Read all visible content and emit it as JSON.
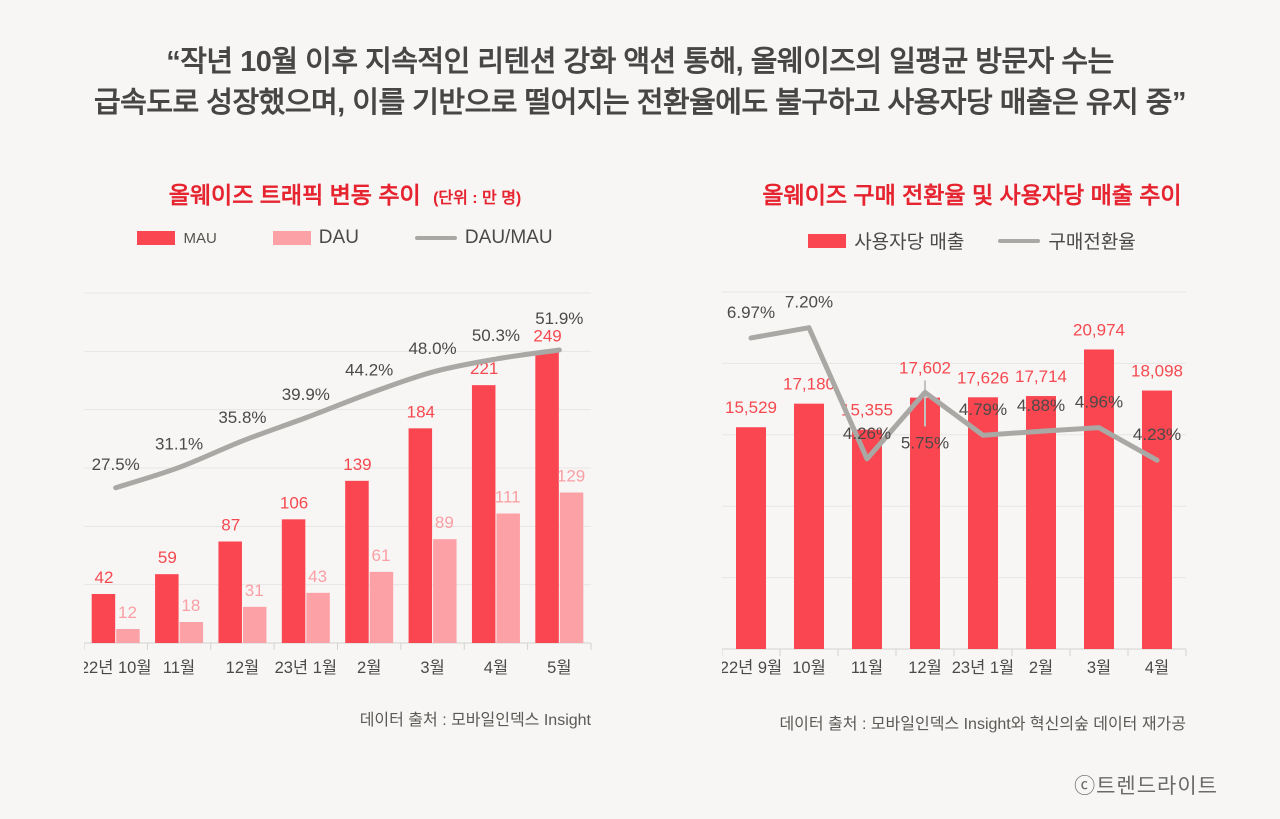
{
  "headline": {
    "line1": "“작년 10월 이후 지속적인 리텐션 강화 액션 통해, 올웨이즈의 일평균 방문자 수는",
    "line2": "급속도로 성장했으며, 이를 기반으로 떨어지는 전환율에도 불구하고 사용자당 매출은 유지 중”"
  },
  "watermark": "ⓒ트렌드라이트",
  "colors": {
    "background": "#F7F6F5",
    "bar_red": "#FA4650",
    "bar_pink": "#FCA2A7",
    "line_gray": "#A9A8A5",
    "title_red": "#E62430",
    "label_dark": "#4B4A48",
    "gridline": "#E7E6E4",
    "axis": "#D3D2D0"
  },
  "chart_data": [
    {
      "type": "bar",
      "title": "올웨이즈 트래픽 변동 추이",
      "unit_note": "(단위 : 만 명)",
      "categories": [
        "22년 10월",
        "11월",
        "12월",
        "23년 1월",
        "2월",
        "3월",
        "4월",
        "5월"
      ],
      "series": [
        {
          "name": "MAU",
          "kind": "bar",
          "color": "#FA4650",
          "label_color": "#F5494F",
          "values": [
            42,
            59,
            87,
            106,
            139,
            184,
            221,
            249
          ]
        },
        {
          "name": "DAU",
          "kind": "bar",
          "color": "#FCA2A7",
          "label_color": "#FA9FA4",
          "values": [
            12,
            18,
            31,
            43,
            61,
            89,
            111,
            129
          ]
        },
        {
          "name": "DAU/MAU",
          "kind": "line",
          "color": "#A9A8A5",
          "smooth": true,
          "values": [
            27.5,
            31.1,
            35.8,
            39.9,
            44.2,
            48.0,
            50.3,
            51.9
          ],
          "labels": [
            "27.5%",
            "31.1%",
            "35.8%",
            "39.9%",
            "44.2%",
            "48.0%",
            "50.3%",
            "51.9%"
          ]
        }
      ],
      "bar_axis": {
        "min": 0,
        "max": 300,
        "grid_step": 50
      },
      "line_axis": {
        "min": 0,
        "max": 62
      },
      "legend_position": "top",
      "grid": true,
      "source": "데이터 출처 : 모바일인덱스 Insight"
    },
    {
      "type": "bar",
      "title": "올웨이즈 구매 전환율 및 사용자당 매출 추이",
      "unit_note": "",
      "categories": [
        "22년 9월",
        "10월",
        "11월",
        "12월",
        "23년 1월",
        "2월",
        "3월",
        "4월"
      ],
      "series": [
        {
          "name": "사용자당 매출",
          "kind": "bar",
          "color": "#FA4650",
          "label_color": "#F5494F",
          "values": [
            15529,
            17180,
            15355,
            17602,
            17626,
            17714,
            20974,
            18098
          ],
          "labels": [
            "15,529",
            "17,180",
            "15,355",
            "17,602",
            "17,626",
            "17,714",
            "20,974",
            "18,098"
          ],
          "raised_label_index": 3
        },
        {
          "name": "구매전환율",
          "kind": "line",
          "color": "#A9A8A5",
          "smooth": false,
          "values": [
            6.97,
            7.2,
            4.26,
            5.75,
            4.79,
            4.88,
            4.96,
            4.23
          ],
          "labels": [
            "6.97%",
            "7.20%",
            "4.26%",
            "5.75%",
            "4.79%",
            "4.88%",
            "4.96%",
            "4.23%"
          ],
          "below_label_index": 3
        }
      ],
      "bar_axis": {
        "min": 0,
        "max": 25000,
        "grid_step": 5000
      },
      "line_axis": {
        "min": 0,
        "max": 8
      },
      "legend_position": "top",
      "grid": true,
      "source": "데이터 출처 : 모바일인덱스 Insight와 혁신의숲 데이터 재가공"
    }
  ]
}
